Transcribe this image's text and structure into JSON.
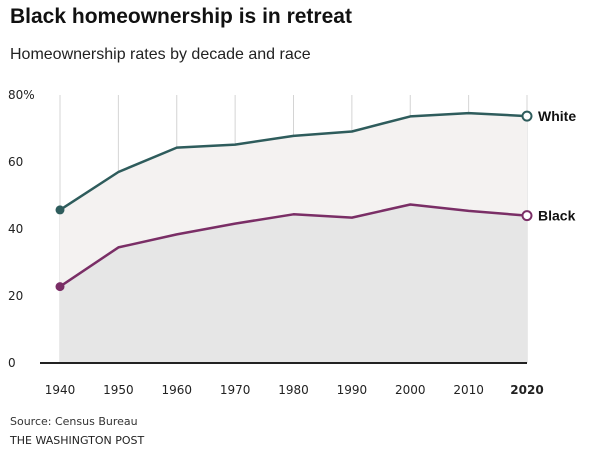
{
  "title": "Black homeownership is in retreat",
  "subtitle": "Homeownership rates by decade and race",
  "source": "Source: Census Bureau",
  "credit": "THE WASHINGTON POST",
  "colors": {
    "white_line": "#2e5c5c",
    "black_line": "#7a2e66",
    "white_area": "#f4f2f1",
    "black_area": "#e6e6e6",
    "grid": "#d4d4d4",
    "axis": "#222222"
  },
  "chart_data": {
    "type": "area",
    "title": "Black homeownership is in retreat",
    "subtitle": "Homeownership rates by decade and race",
    "x": [
      "1940",
      "1950",
      "1960",
      "1970",
      "1980",
      "1990",
      "2000",
      "2010",
      "2020"
    ],
    "series": [
      {
        "name": "White",
        "values": [
          45.7,
          57.0,
          64.3,
          65.2,
          67.8,
          69.1,
          73.6,
          74.6,
          73.7
        ]
      },
      {
        "name": "Black",
        "values": [
          22.8,
          34.5,
          38.4,
          41.6,
          44.4,
          43.4,
          47.3,
          45.4,
          44.0
        ]
      }
    ],
    "ylim": [
      0,
      80
    ],
    "yticks": [
      "0",
      "20",
      "40",
      "60",
      "80%"
    ],
    "ytick_values": [
      0,
      20,
      40,
      60,
      80
    ],
    "grid": "vertical lines at each decade",
    "legend": "direct labels at line ends"
  }
}
